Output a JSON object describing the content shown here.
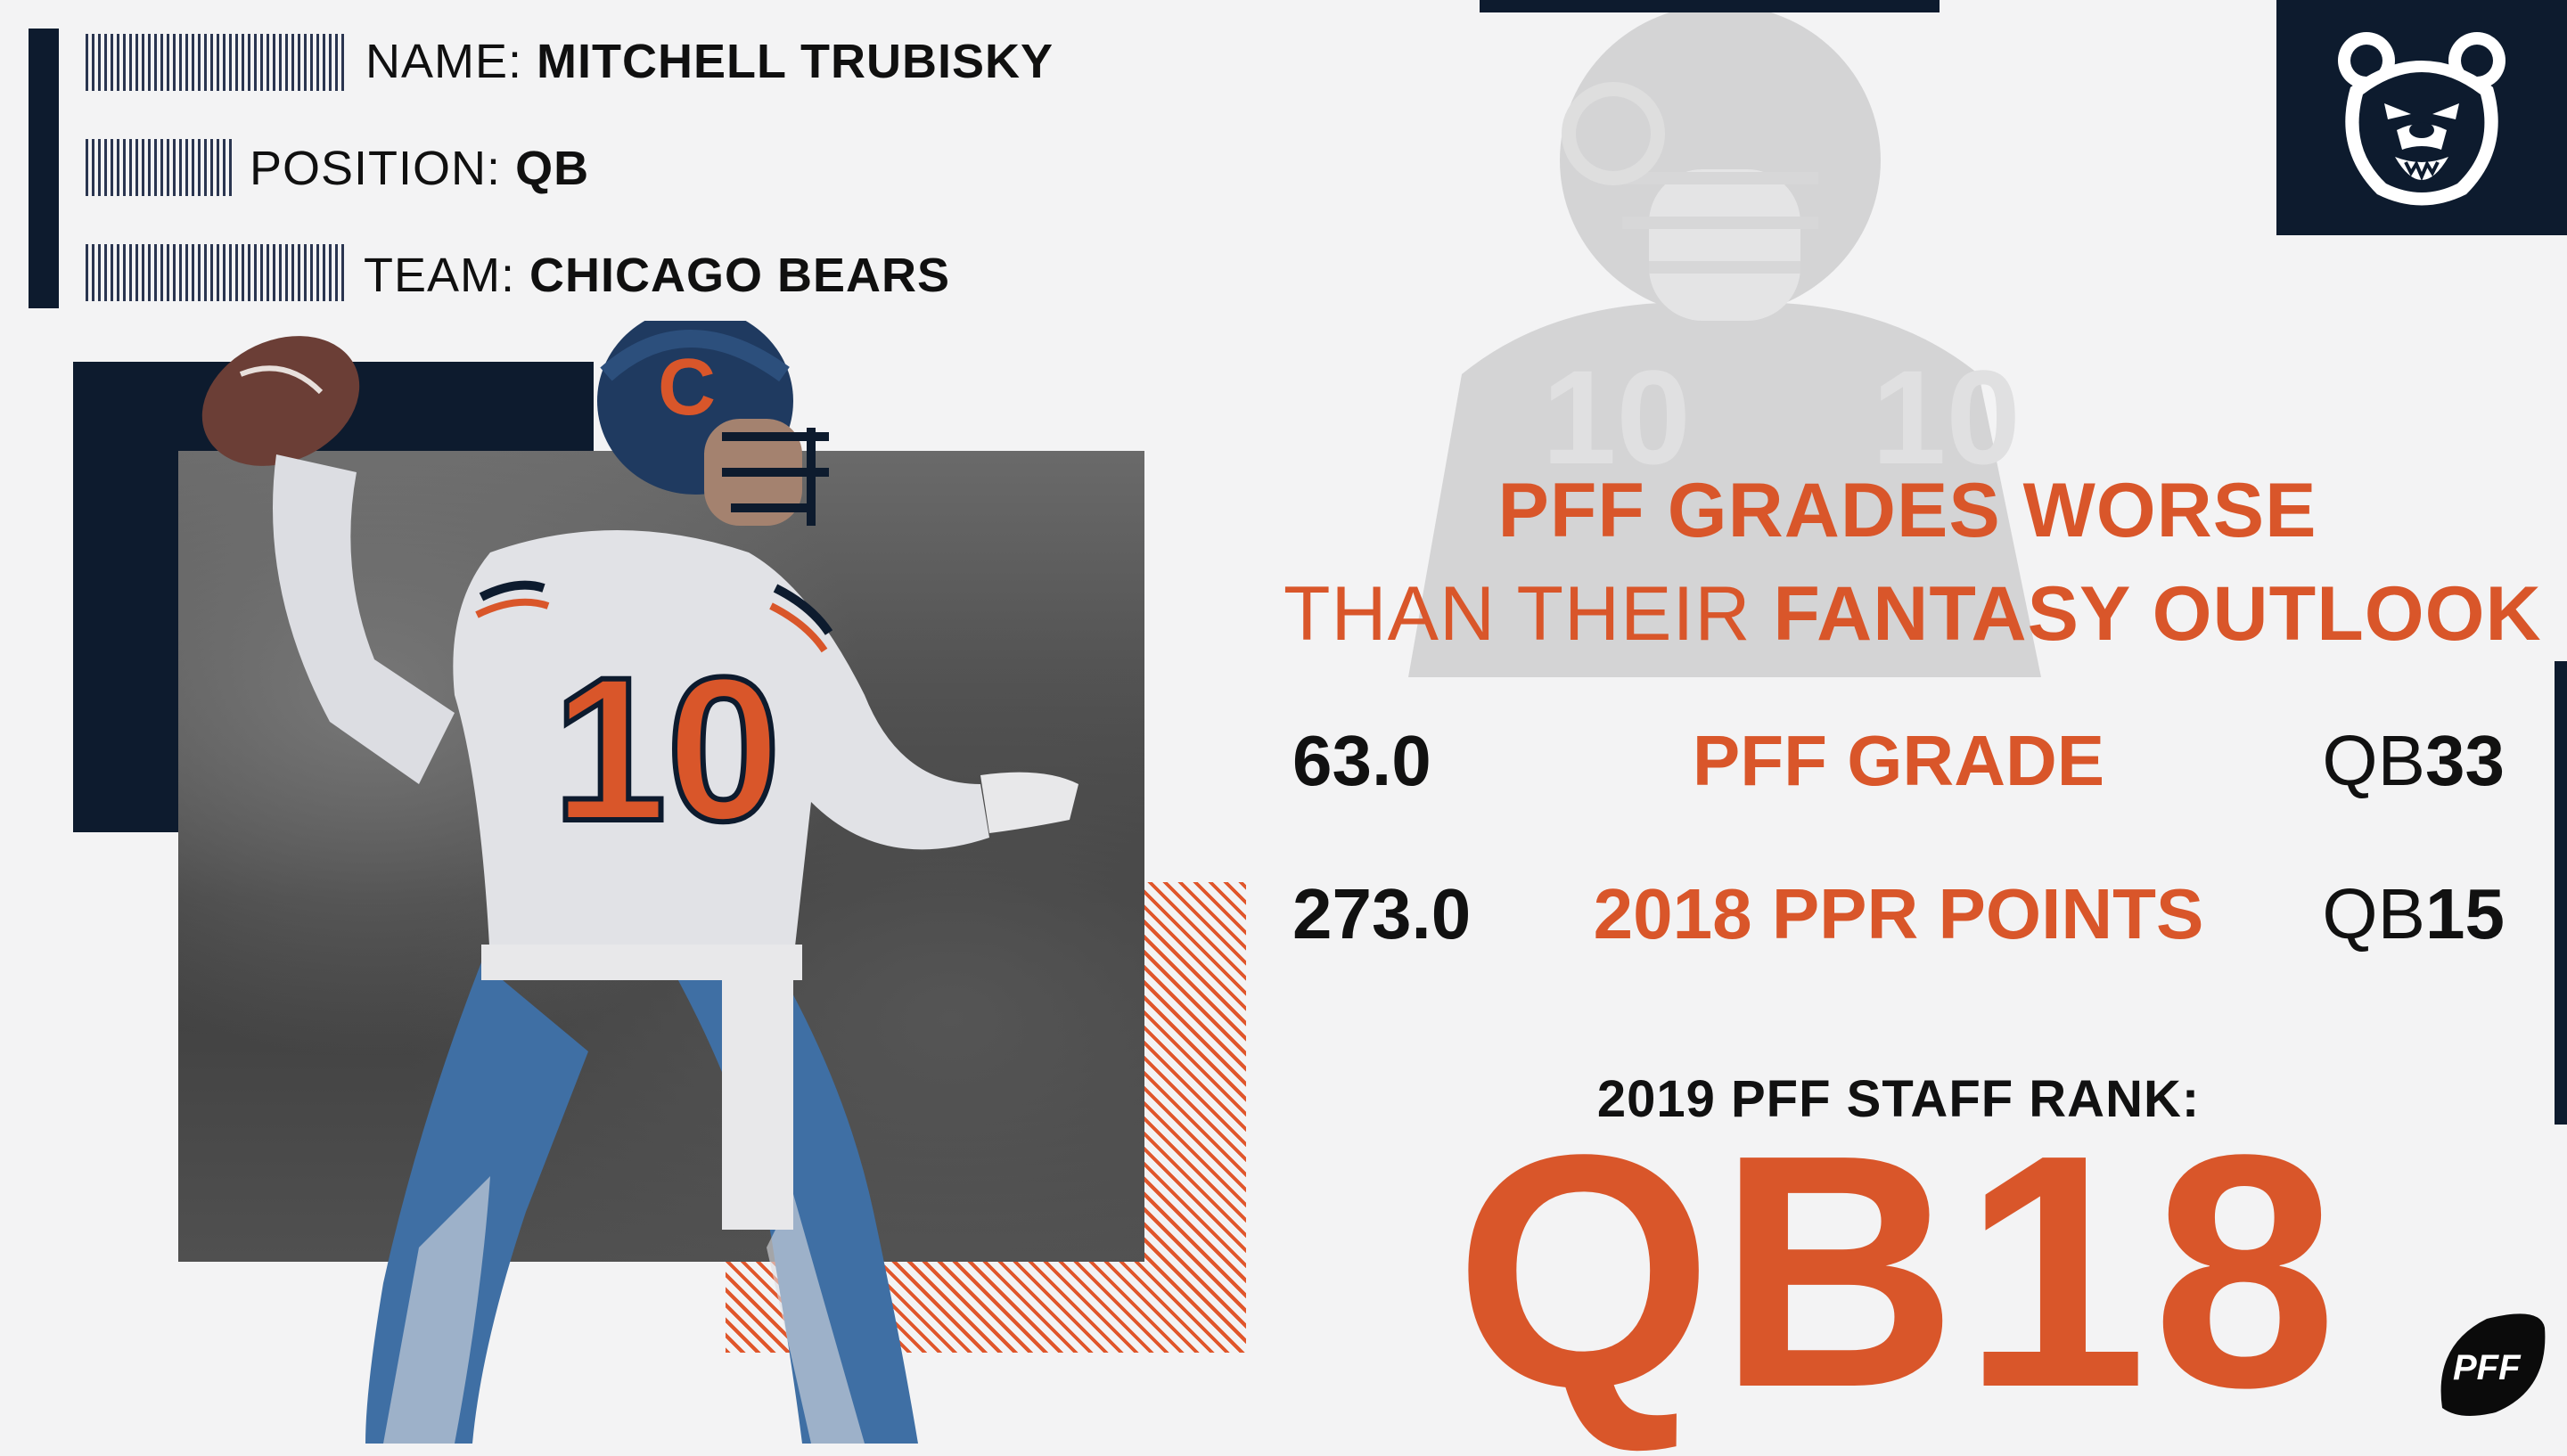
{
  "player": {
    "name_label": "NAME:",
    "name": "MITCHELL TRUBISKY",
    "position_label": "POSITION:",
    "position": "QB",
    "team_label": "TEAM:",
    "team": "CHICAGO BEARS",
    "jersey_number": "10"
  },
  "headline": {
    "line1": "PFF GRADES WORSE",
    "line2_light": "THAN THEIR ",
    "line2_bold": "FANTASY OUTLOOK"
  },
  "stats": [
    {
      "value": "63.0",
      "label": "PFF GRADE",
      "rank_prefix": "QB",
      "rank_number": "33"
    },
    {
      "value": "273.0",
      "label": "2018 PPR POINTS",
      "rank_prefix": "QB",
      "rank_number": "15"
    }
  ],
  "staff_rank": {
    "label": "2019 PFF STAFF RANK:",
    "value": "QB18"
  },
  "branding": {
    "team_logo_icon": "bear-head-icon",
    "pff_logo_icon": "pff-football-icon",
    "pff_logo_text": "PFF",
    "helmet_logo_letter": "C"
  },
  "colors": {
    "navy": "#0d1b2e",
    "orange": "#d9562a",
    "background": "#f3f3f4"
  }
}
